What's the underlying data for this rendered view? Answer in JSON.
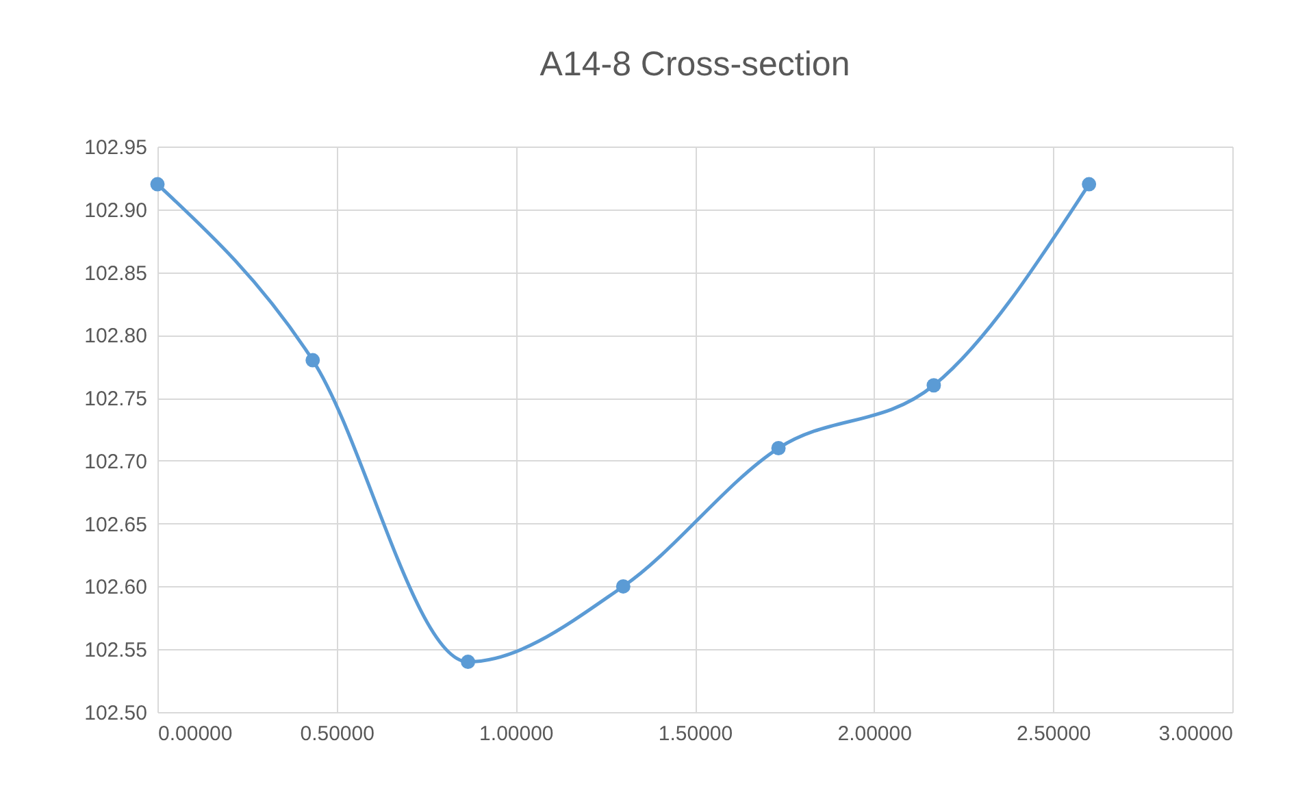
{
  "chart_data": {
    "type": "line",
    "title": "A14-8 Cross-section",
    "x": [
      0,
      0.4333,
      0.8667,
      1.3,
      1.7333,
      2.1667,
      2.6
    ],
    "series": [
      {
        "color": "#5b9bd5",
        "values": [
          102.92,
          102.78,
          102.54,
          102.6,
          102.71,
          102.76,
          102.92
        ]
      }
    ],
    "xlim": [
      0,
      3
    ],
    "xticks": [
      {
        "value": 0,
        "label": "0.00000"
      },
      {
        "value": 0.5,
        "label": "0.50000"
      },
      {
        "value": 1,
        "label": "1.00000"
      },
      {
        "value": 1.5,
        "label": "1.50000"
      },
      {
        "value": 2,
        "label": "2.00000"
      },
      {
        "value": 2.5,
        "label": "2.50000"
      },
      {
        "value": 3,
        "label": "3.00000"
      }
    ],
    "ylim": [
      102.5,
      102.95
    ],
    "yticks": [
      {
        "value": 102.5,
        "label": "102.50"
      },
      {
        "value": 102.55,
        "label": "102.55"
      },
      {
        "value": 102.6,
        "label": "102.60"
      },
      {
        "value": 102.65,
        "label": "102.65"
      },
      {
        "value": 102.7,
        "label": "102.70"
      },
      {
        "value": 102.75,
        "label": "102.75"
      },
      {
        "value": 102.8,
        "label": "102.80"
      },
      {
        "value": 102.85,
        "label": "102.85"
      },
      {
        "value": 102.9,
        "label": "102.90"
      },
      {
        "value": 102.95,
        "label": "102.95"
      }
    ],
    "grid": true,
    "marker": "circle",
    "line_style": "solid",
    "legend": false
  }
}
